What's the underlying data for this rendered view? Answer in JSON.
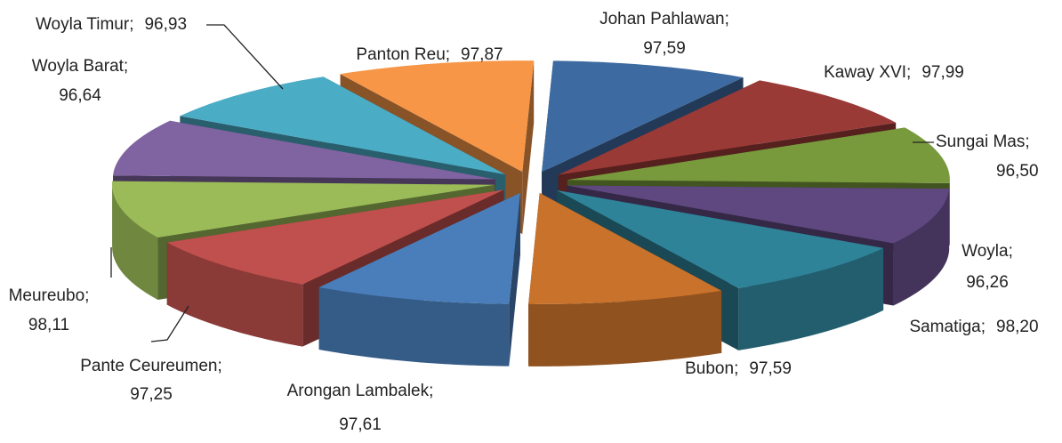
{
  "chart_data": {
    "type": "pie3d",
    "categories": [
      "Johan Pahlawan",
      "Kaway XVI",
      "Sungai Mas",
      "Woyla",
      "Samatiga",
      "Bubon",
      "Arongan Lambalek",
      "Pante Ceureumen",
      "Meureubo",
      "Woyla Barat",
      "Woyla Timur",
      "Panton Reu"
    ],
    "values": [
      97.59,
      97.99,
      96.5,
      96.26,
      98.2,
      97.59,
      97.61,
      97.25,
      98.11,
      96.64,
      96.93,
      97.87
    ],
    "value_labels": [
      "97,59",
      "97,99",
      "96,50",
      "96,26",
      "98,20",
      "97,59",
      "97,61",
      "97,25",
      "98,11",
      "96,64",
      "96,93",
      "97,87"
    ],
    "label_separator": ";",
    "colors": [
      "#3d6aa0",
      "#9a3a37",
      "#789a3c",
      "#5f4880",
      "#2f8399",
      "#c8722b",
      "#4a7ebb",
      "#c0504d",
      "#9bbb59",
      "#8064a2",
      "#4bacc6",
      "#f79646"
    ]
  }
}
